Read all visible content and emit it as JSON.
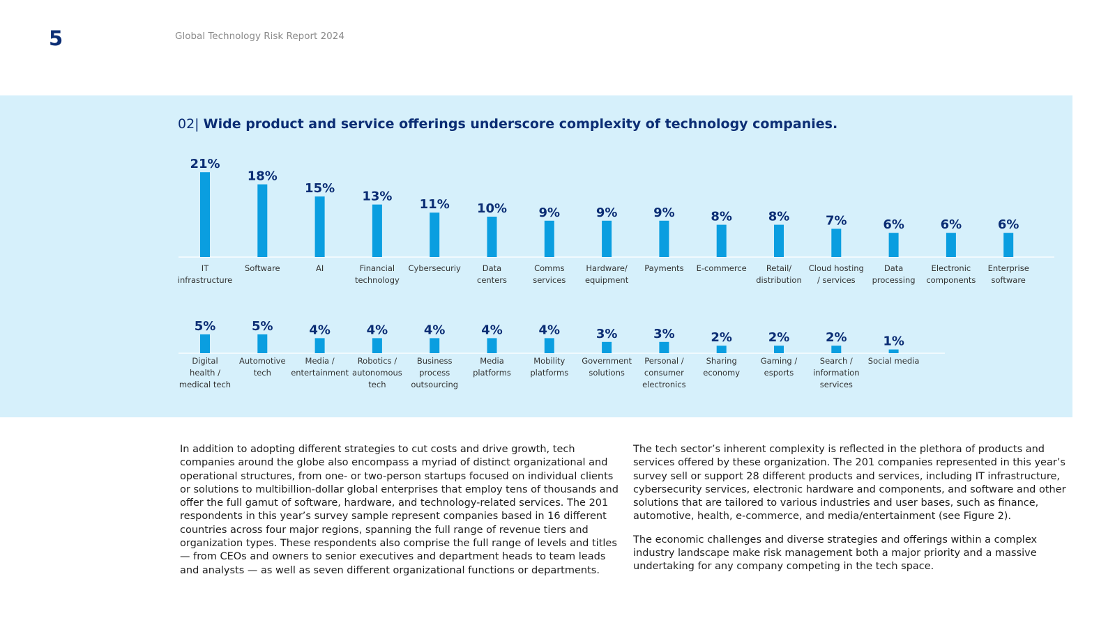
{
  "header": {
    "page_number": "5",
    "report_title": "Global Technology Risk Report 2024"
  },
  "figure": {
    "number": "02|",
    "title": "Wide product and service offerings underscore complexity of technology companies."
  },
  "chart_data": {
    "type": "bar",
    "title": "Wide product and service offerings underscore complexity of technology companies.",
    "unit": "%",
    "bar_color": "#0a9ee0",
    "value_label_color": "#0b2d74",
    "rows": [
      {
        "categories": [
          [
            "IT",
            "infrastructure"
          ],
          [
            "Software"
          ],
          [
            "AI"
          ],
          [
            "Financial",
            "technology"
          ],
          [
            "Cybersecuriy"
          ],
          [
            "Data",
            "centers"
          ],
          [
            "Comms",
            "services"
          ],
          [
            "Hardware/",
            "equipment"
          ],
          [
            "Payments"
          ],
          [
            "E-commerce"
          ],
          [
            "Retail/",
            "distribution"
          ],
          [
            "Cloud hosting",
            "/ services"
          ],
          [
            "Data",
            "processing"
          ],
          [
            "Electronic",
            "components"
          ],
          [
            "Enterprise",
            "software"
          ]
        ],
        "values": [
          21,
          18,
          15,
          13,
          11,
          10,
          9,
          9,
          9,
          8,
          8,
          7,
          6,
          6,
          6
        ],
        "labels": [
          "21%",
          "18%",
          "15%",
          "13%",
          "11%",
          "10%",
          "9%",
          "9%",
          "9%",
          "8%",
          "8%",
          "7%",
          "6%",
          "6%",
          "6%"
        ]
      },
      {
        "categories": [
          [
            "Digital",
            "health /",
            "medical tech"
          ],
          [
            "Automotive",
            "tech"
          ],
          [
            "Media /",
            "entertainment"
          ],
          [
            "Robotics /",
            "autonomous",
            "tech"
          ],
          [
            "Business",
            "process",
            "outsourcing"
          ],
          [
            "Media",
            "platforms"
          ],
          [
            "Mobility",
            "platforms"
          ],
          [
            "Government",
            "solutions"
          ],
          [
            "Personal /",
            "consumer",
            "electronics"
          ],
          [
            "Sharing",
            "economy"
          ],
          [
            "Gaming /",
            "esports"
          ],
          [
            "Search /",
            "information",
            "services"
          ],
          [
            "Social media"
          ]
        ],
        "values": [
          5,
          5,
          4,
          4,
          4,
          4,
          4,
          3,
          3,
          2,
          2,
          2,
          1
        ],
        "labels": [
          "5%",
          "5%",
          "4%",
          "4%",
          "4%",
          "4%",
          "4%",
          "3%",
          "3%",
          "2%",
          "2%",
          "2%",
          "1%"
        ]
      }
    ]
  },
  "body": {
    "column1": [
      "In addition to adopting different strategies to cut costs and drive growth, tech companies around the globe also encompass a myriad of distinct organizational and operational structures, from one- or two-person startups focused on individual clients or solutions to multibillion-dollar global enterprises that employ tens of thousands and offer the full gamut of software, hardware, and technology-related services. The 201 respondents in this year’s survey sample represent companies based in 16 different countries across four major regions, spanning the full range of revenue tiers and organization types. These respondents also comprise the full range of levels and titles — from CEOs and owners to senior executives and department heads to team leads and analysts — as well as seven different organizational functions or departments."
    ],
    "column2": [
      "The tech sector’s inherent complexity is reflected in the plethora of products and services offered by these organization. The 201 companies represented in this year’s survey sell or support 28 different products and services, including IT infrastructure, cybersecurity services, electronic hardware and components, and software and other solutions that are tailored to various industries and user bases, such as finance, automotive, health, e-commerce, and media/entertainment (see Figure 2).",
      "The economic challenges and diverse strategies and offerings within a complex industry landscape make risk management both a major priority and a massive undertaking for any company competing in the tech space."
    ]
  }
}
